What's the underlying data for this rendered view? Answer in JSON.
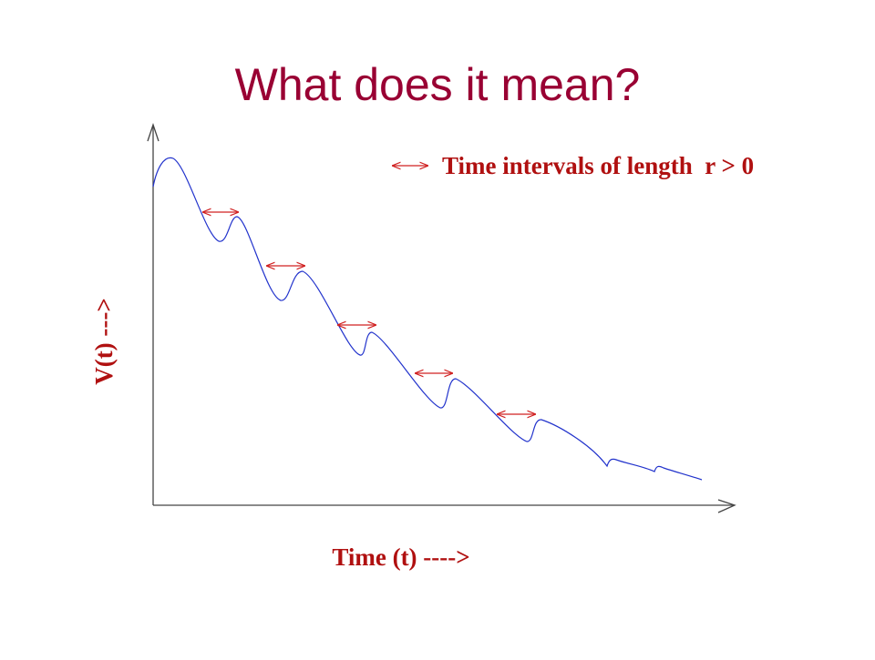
{
  "title": "What does it mean?",
  "diagram": {
    "legend": "Time intervals of length  r > 0",
    "y_axis_label": "V(t) --->",
    "x_axis_label": "Time (t) ---->"
  }
}
